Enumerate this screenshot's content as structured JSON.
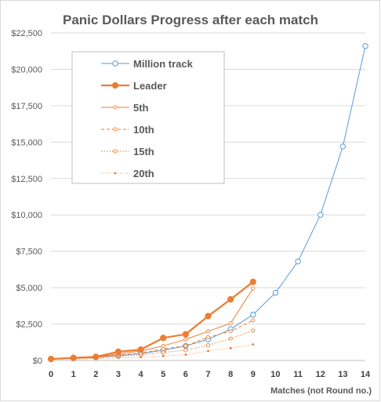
{
  "chart_data": {
    "type": "line",
    "title": "Panic Dollars Progress after each match",
    "xlabel": "Matches (not Round no.)",
    "ylabel": "",
    "x": [
      0,
      1,
      2,
      3,
      4,
      5,
      6,
      7,
      8,
      9,
      10,
      11,
      12,
      13,
      14
    ],
    "xlim": [
      0,
      14
    ],
    "ylim": [
      0,
      22500
    ],
    "y_ticks": [
      0,
      2500,
      5000,
      7500,
      10000,
      12500,
      15000,
      17500,
      20000,
      22500
    ],
    "y_tick_labels": [
      "$0",
      "$2,500",
      "$5,000",
      "$7,500",
      "$10,000",
      "$12,500",
      "$15,000",
      "$17,500",
      "$20,000",
      "$22,500"
    ],
    "x_tick_labels": [
      "0",
      "1",
      "2",
      "3",
      "4",
      "5",
      "6",
      "7",
      "8",
      "9",
      "10",
      "11",
      "12",
      "13",
      "14"
    ],
    "grid": "horizontal",
    "legend_position": "top-left inside plot",
    "series": [
      {
        "name": "Million track",
        "color": "#5b9bd5",
        "style": "solid",
        "marker": "open-circle",
        "x": [
          0,
          1,
          2,
          3,
          4,
          5,
          6,
          7,
          8,
          9,
          10,
          11,
          12,
          13,
          14
        ],
        "values": [
          100,
          150,
          230,
          330,
          480,
          700,
          1000,
          1450,
          2150,
          3150,
          4650,
          6800,
          10000,
          14700,
          21600
        ]
      },
      {
        "name": "Leader",
        "color": "#ed7d31",
        "style": "solid-thick",
        "marker": "filled-circle",
        "x": [
          0,
          1,
          2,
          3,
          4,
          5,
          6,
          7,
          8,
          9
        ],
        "values": [
          100,
          180,
          250,
          600,
          750,
          1550,
          1800,
          3050,
          4200,
          5400
        ]
      },
      {
        "name": "5th",
        "color": "#ed7d31",
        "style": "solid",
        "marker": "open-circle-small",
        "x": [
          0,
          1,
          2,
          3,
          4,
          5,
          6,
          7,
          8,
          9
        ],
        "values": [
          100,
          150,
          220,
          450,
          650,
          1000,
          1450,
          2000,
          2550,
          4950
        ]
      },
      {
        "name": "10th",
        "color": "#ed7d31",
        "style": "dashed",
        "marker": "open-circle-small",
        "x": [
          0,
          1,
          2,
          3,
          4,
          5,
          6,
          7,
          8,
          9
        ],
        "values": [
          100,
          150,
          200,
          380,
          500,
          800,
          1000,
          1600,
          2000,
          2750
        ]
      },
      {
        "name": "15th",
        "color": "#ed7d31",
        "style": "dotted",
        "marker": "open-circle-small",
        "x": [
          0,
          1,
          2,
          3,
          4,
          5,
          6,
          7,
          8,
          9
        ],
        "values": [
          100,
          130,
          170,
          300,
          380,
          550,
          700,
          1050,
          1500,
          2050
        ]
      },
      {
        "name": "20th",
        "color": "#ed7d31",
        "style": "dotted-thin",
        "marker": "dot",
        "x": [
          0,
          1,
          2,
          3,
          4,
          5,
          6,
          7,
          8,
          9
        ],
        "values": [
          80,
          100,
          130,
          180,
          220,
          300,
          400,
          650,
          850,
          1100
        ]
      }
    ]
  }
}
